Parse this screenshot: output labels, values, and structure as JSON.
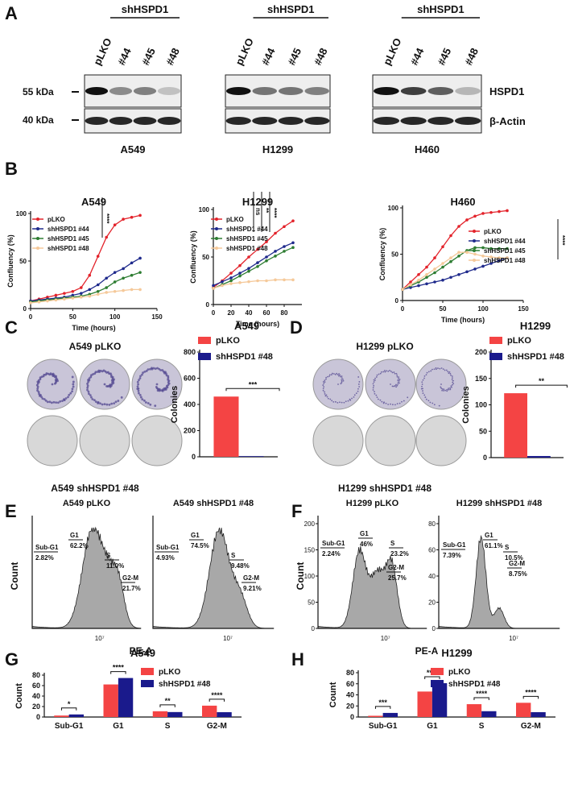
{
  "panel_labels": [
    "A",
    "B",
    "C",
    "D",
    "E",
    "F",
    "G",
    "H"
  ],
  "blots": {
    "group_label": "shHSPD1",
    "lanes": [
      "pLKO",
      "#44",
      "#45",
      "#48"
    ],
    "markers": [
      "55 kDa",
      "40 kDa"
    ],
    "proteins": [
      "HSPD1",
      "β-Actin"
    ],
    "cell_lines": [
      "A549",
      "H1299",
      "H460"
    ]
  },
  "colonies": [
    {
      "top": "A549 pLKO",
      "bottom": "A549 shHSPD1 #48"
    },
    {
      "top": "H1299 pLKO",
      "bottom": "H1299 shHSPD1 #48"
    }
  ],
  "flow": {
    "xlabel": "PE-A",
    "ylabel": "Count",
    "xtick": "10⁷",
    "panels": [
      {
        "title": "A549 pLKO",
        "yticks": [],
        "gates": [
          {
            "label": "Sub-G1",
            "pct": "2.82%"
          },
          {
            "label": "G1",
            "pct": "62.2%"
          },
          {
            "label": "S",
            "pct": "11.0%"
          },
          {
            "label": "G2-M",
            "pct": "21.7%"
          }
        ]
      },
      {
        "title": "A549 shHSPD1 #48",
        "yticks": [],
        "gates": [
          {
            "label": "Sub-G1",
            "pct": "4.93%"
          },
          {
            "label": "G1",
            "pct": "74.5%"
          },
          {
            "label": "S",
            "pct": "9.48%"
          },
          {
            "label": "G2-M",
            "pct": "9.21%"
          }
        ]
      },
      {
        "title": "H1299 pLKO",
        "yticks": [
          0,
          50,
          100,
          150,
          200
        ],
        "gates": [
          {
            "label": "Sub-G1",
            "pct": "2.24%"
          },
          {
            "label": "G1",
            "pct": "46%"
          },
          {
            "label": "S",
            "pct": "23.2%"
          },
          {
            "label": "G2-M",
            "pct": "25.7%"
          }
        ]
      },
      {
        "title": "H1299 shHSPD1 #48",
        "yticks": [
          0,
          20,
          40,
          60,
          80
        ],
        "gates": [
          {
            "label": "Sub-G1",
            "pct": "7.39%"
          },
          {
            "label": "G1",
            "pct": "61.1%"
          },
          {
            "label": "S",
            "pct": "10.5%"
          },
          {
            "label": "G2-M",
            "pct": "8.75%"
          }
        ]
      }
    ]
  },
  "chart_data": [
    {
      "type": "line",
      "title": "A549",
      "xlabel": "Time (hours)",
      "ylabel": "Confluency (%)",
      "xlim": [
        0,
        150
      ],
      "ylim": [
        0,
        100
      ],
      "xticks": [
        0,
        50,
        100,
        150
      ],
      "yticks": [
        0,
        50,
        100
      ],
      "legend": "upper left",
      "annotations": [
        "****"
      ],
      "x": [
        0,
        10,
        20,
        30,
        40,
        50,
        60,
        70,
        80,
        90,
        100,
        110,
        120,
        130
      ],
      "series": [
        {
          "name": "pLKO",
          "color": "#e3232b",
          "values": [
            8,
            10,
            12,
            14,
            16,
            18,
            22,
            35,
            55,
            75,
            88,
            94,
            96,
            98
          ]
        },
        {
          "name": "shHSPD1 #44",
          "color": "#1f2a8c",
          "values": [
            8,
            9,
            10,
            11,
            12,
            14,
            16,
            20,
            25,
            32,
            38,
            42,
            48,
            53
          ]
        },
        {
          "name": "shHSPD1 #45",
          "color": "#2e7d32",
          "values": [
            7,
            8,
            9,
            10,
            11,
            12,
            13,
            15,
            18,
            22,
            28,
            32,
            35,
            38
          ]
        },
        {
          "name": "shHSPD1 #48",
          "color": "#f5c99a",
          "values": [
            6,
            7,
            8,
            9,
            10,
            11,
            12,
            13,
            15,
            17,
            18,
            19,
            20,
            20
          ]
        }
      ]
    },
    {
      "type": "line",
      "title": "H1299",
      "xlabel": "Time (hours)",
      "ylabel": "Confluency (%)",
      "xlim": [
        0,
        100
      ],
      "ylim": [
        0,
        100
      ],
      "xticks": [
        0,
        20,
        40,
        60,
        80
      ],
      "yticks": [
        0,
        50,
        100
      ],
      "legend": "upper left",
      "annotations": [
        "ns",
        "**",
        "****"
      ],
      "x": [
        0,
        10,
        20,
        30,
        40,
        50,
        60,
        70,
        80,
        90
      ],
      "series": [
        {
          "name": "pLKO",
          "color": "#e3232b",
          "values": [
            18,
            25,
            33,
            41,
            50,
            58,
            66,
            75,
            82,
            88
          ]
        },
        {
          "name": "shHSPD1 #44",
          "color": "#1f2a8c",
          "values": [
            20,
            24,
            28,
            33,
            38,
            44,
            50,
            56,
            61,
            65
          ]
        },
        {
          "name": "shHSPD1 #45",
          "color": "#2e7d32",
          "values": [
            17,
            21,
            25,
            30,
            35,
            40,
            46,
            51,
            56,
            60
          ]
        },
        {
          "name": "shHSPD1 #48",
          "color": "#f5c99a",
          "values": [
            17,
            20,
            22,
            23,
            24,
            25,
            25,
            26,
            26,
            26
          ]
        }
      ]
    },
    {
      "type": "line",
      "title": "H460",
      "xlabel": "Time (hours)",
      "ylabel": "Confluency (%)",
      "xlim": [
        0,
        150
      ],
      "ylim": [
        0,
        100
      ],
      "xticks": [
        0,
        50,
        100,
        150
      ],
      "yticks": [
        0,
        50,
        100
      ],
      "legend": "right",
      "annotations": [
        "****"
      ],
      "x": [
        0,
        10,
        20,
        30,
        40,
        50,
        60,
        70,
        80,
        90,
        100,
        110,
        120,
        130
      ],
      "series": [
        {
          "name": "pLKO",
          "color": "#e3232b",
          "values": [
            12,
            20,
            28,
            36,
            46,
            58,
            70,
            80,
            87,
            91,
            94,
            95,
            96,
            97
          ]
        },
        {
          "name": "shHSPD1 #44",
          "color": "#1f2a8c",
          "values": [
            12,
            14,
            16,
            18,
            20,
            22,
            25,
            28,
            31,
            34,
            37,
            40,
            43,
            46
          ]
        },
        {
          "name": "shHSPD1 #45",
          "color": "#2e7d32",
          "values": [
            12,
            16,
            20,
            25,
            30,
            36,
            42,
            48,
            54,
            57,
            57,
            56,
            56,
            56
          ]
        },
        {
          "name": "shHSPD1 #48",
          "color": "#f5c99a",
          "values": [
            12,
            17,
            22,
            28,
            34,
            40,
            46,
            52,
            52,
            50,
            48,
            47,
            46,
            46
          ]
        }
      ]
    },
    {
      "type": "bar",
      "title": "A549",
      "ylabel": "Colonies",
      "ylim": [
        0,
        800
      ],
      "yticks": [
        0,
        200,
        400,
        600,
        800
      ],
      "annotations": [
        "***"
      ],
      "series": [
        {
          "name": "pLKO",
          "color": "#f44444",
          "values": [
            460
          ]
        },
        {
          "name": "shHSPD1 #48",
          "color": "#1a1a8c",
          "values": [
            5
          ]
        }
      ]
    },
    {
      "type": "bar",
      "title": "H1299",
      "ylabel": "Colonies",
      "ylim": [
        0,
        200
      ],
      "yticks": [
        0,
        50,
        100,
        150,
        200
      ],
      "annotations": [
        "**"
      ],
      "series": [
        {
          "name": "pLKO",
          "color": "#f44444",
          "values": [
            122
          ]
        },
        {
          "name": "shHSPD1 #48",
          "color": "#1a1a8c",
          "values": [
            3
          ]
        }
      ]
    },
    {
      "type": "grouped-bar",
      "title": "A549",
      "ylabel": "Count",
      "ylim": [
        0,
        80
      ],
      "yticks": [
        0,
        20,
        40,
        60,
        80
      ],
      "annotations": [
        "*",
        "****",
        "**",
        "****"
      ],
      "categories": [
        "Sub-G1",
        "G1",
        "S",
        "G2-M"
      ],
      "series": [
        {
          "name": "pLKO",
          "color": "#f44444",
          "values": [
            2.82,
            62.2,
            11.0,
            21.7
          ]
        },
        {
          "name": "shHSPD1 #48",
          "color": "#1a1a8c",
          "values": [
            4.93,
            74.5,
            9.48,
            9.21
          ]
        }
      ]
    },
    {
      "type": "grouped-bar",
      "title": "H1299",
      "ylabel": "Count",
      "ylim": [
        0,
        80
      ],
      "yticks": [
        0,
        20,
        40,
        60,
        80
      ],
      "annotations": [
        "***",
        "****",
        "****",
        "****"
      ],
      "categories": [
        "Sub-G1",
        "G1",
        "S",
        "G2-M"
      ],
      "series": [
        {
          "name": "pLKO",
          "color": "#f44444",
          "values": [
            2.24,
            46,
            23.2,
            25.7
          ]
        },
        {
          "name": "shHSPD1 #48",
          "color": "#1a1a8c",
          "values": [
            7.39,
            61.1,
            10.5,
            8.75
          ]
        }
      ]
    }
  ]
}
